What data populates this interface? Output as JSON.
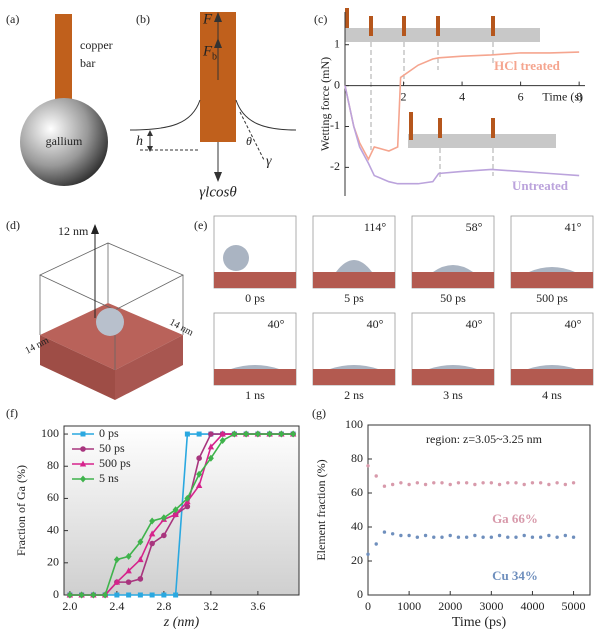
{
  "figure": {
    "panel_a": {
      "label": "(a)",
      "bar_label": [
        "copper",
        "bar"
      ],
      "sphere_label": "gallium"
    },
    "panel_b": {
      "label": "(b)",
      "force": "F",
      "buoyancy": "F",
      "buoyancy_sub": "b",
      "height": "h",
      "angle": "θ",
      "tension": "γ",
      "wetting": "γlcosθ"
    },
    "panel_d": {
      "label": "(d)",
      "height": "12 nm",
      "width": "14 nm",
      "depth": "14 nm"
    },
    "panel_e": {
      "label": "(e)",
      "frames": [
        {
          "time": "0 ps"
        },
        {
          "time": "5 ps",
          "angle": "114°"
        },
        {
          "time": "50 ps",
          "angle": "58°"
        },
        {
          "time": "500 ps",
          "angle": "41°"
        },
        {
          "time": "1 ns",
          "angle": "40°"
        },
        {
          "time": "2 ns",
          "angle": "40°"
        },
        {
          "time": "3 ns",
          "angle": "40°"
        },
        {
          "time": "4 ns",
          "angle": "40°"
        }
      ]
    }
  },
  "chart_data": [
    {
      "type": "line",
      "label": "(c)",
      "x_label": "Time (s)",
      "y_label": "Wetting force (mN)",
      "x": [
        0,
        0.3,
        0.5,
        0.8,
        1.0,
        1.5,
        1.8,
        1.9,
        2.5,
        3,
        3.2,
        4,
        5,
        6,
        7,
        8
      ],
      "series": [
        {
          "name": "HCl treated",
          "color": "#f5a58f",
          "values": [
            0,
            -1.0,
            -1.4,
            -1.8,
            -1.5,
            -1.6,
            -1.5,
            0.2,
            0.5,
            0.65,
            0.68,
            0.72,
            0.75,
            0.8,
            0.8,
            0.82
          ]
        },
        {
          "name": "Untreated",
          "color": "#bba3dc",
          "values": [
            0,
            -1.0,
            -1.5,
            -1.9,
            -2.2,
            -2.35,
            -2.4,
            -2.4,
            -2.4,
            -2.35,
            -2.15,
            -2.1,
            -2.05,
            -2.1,
            -2.15,
            -2.2
          ]
        }
      ],
      "xlim": [
        0,
        8.2
      ],
      "ylim": [
        -2.7,
        1.8
      ],
      "xticks": [
        2,
        4,
        6,
        8
      ],
      "yticks": [
        -2,
        -1,
        0,
        1
      ]
    },
    {
      "type": "line",
      "label": "(f)",
      "x_label": "z (nm)",
      "y_label": "Fraction of Ga (%)",
      "legend": "upper left",
      "x": [
        2.0,
        2.1,
        2.2,
        2.3,
        2.4,
        2.5,
        2.6,
        2.7,
        2.8,
        2.9,
        3.0,
        3.1,
        3.2,
        3.3,
        3.4,
        3.5,
        3.6,
        3.7,
        3.8,
        3.9
      ],
      "series": [
        {
          "name": "0 ps",
          "color": "#2aa8e0",
          "marker": "square",
          "values": [
            0,
            0,
            0,
            0,
            0,
            0,
            0,
            0,
            0,
            0,
            100,
            100,
            100,
            100,
            100,
            100,
            100,
            100,
            100,
            100
          ]
        },
        {
          "name": "50 ps",
          "color": "#a8357e",
          "marker": "circle",
          "values": [
            0,
            0,
            0,
            0,
            8,
            8,
            10,
            32,
            37,
            50,
            55,
            85,
            100,
            100,
            100,
            100,
            100,
            100,
            100,
            100
          ]
        },
        {
          "name": "500 ps",
          "color": "#d6238c",
          "marker": "triangle",
          "values": [
            0,
            0,
            0,
            0,
            8,
            15,
            22,
            38,
            47,
            50,
            58,
            68,
            92,
            100,
            100,
            100,
            100,
            100,
            100,
            100
          ]
        },
        {
          "name": "5 ns",
          "color": "#3fb34c",
          "marker": "diamond",
          "values": [
            0,
            0,
            0,
            0,
            22,
            24,
            33,
            46,
            48,
            53,
            60,
            75,
            85,
            96,
            100,
            100,
            100,
            100,
            100,
            100
          ]
        }
      ],
      "xlim": [
        1.95,
        3.95
      ],
      "ylim": [
        0,
        105
      ],
      "xticks": [
        {
          "value": 2,
          "label": "2.0"
        },
        2.4,
        2.8,
        3.2,
        3.6
      ],
      "yticks": [
        0,
        20,
        40,
        60,
        80,
        100
      ]
    },
    {
      "type": "scatter",
      "label": "(g)",
      "title": "region: z=3.05~3.25 nm",
      "x_label": "Time (ps)",
      "y_label": "Element fraction (%)",
      "x": [
        0,
        200,
        400,
        600,
        800,
        1000,
        1200,
        1400,
        1600,
        1800,
        2000,
        2200,
        2400,
        2600,
        2800,
        3000,
        3200,
        3400,
        3600,
        3800,
        4000,
        4200,
        4400,
        4600,
        4800,
        5000
      ],
      "series": [
        {
          "name": "Ga 66%",
          "color": "#d89aab",
          "values": [
            76,
            70,
            64,
            65,
            66,
            65,
            66,
            65,
            66,
            66,
            65,
            66,
            66,
            65,
            66,
            66,
            65,
            66,
            66,
            65,
            66,
            66,
            65,
            66,
            65,
            66
          ]
        },
        {
          "name": "Cu 34%",
          "color": "#6f8fbd",
          "values": [
            24,
            30,
            37,
            36,
            35,
            35,
            34,
            35,
            34,
            34,
            35,
            34,
            34,
            35,
            34,
            34,
            35,
            34,
            34,
            35,
            34,
            34,
            35,
            34,
            35,
            34
          ]
        }
      ],
      "xlim": [
        0,
        5400
      ],
      "ylim": [
        0,
        100
      ],
      "xticks": [
        0,
        1000,
        2000,
        3000,
        4000,
        5000
      ],
      "yticks": [
        0,
        20,
        40,
        60,
        80,
        100
      ]
    }
  ]
}
